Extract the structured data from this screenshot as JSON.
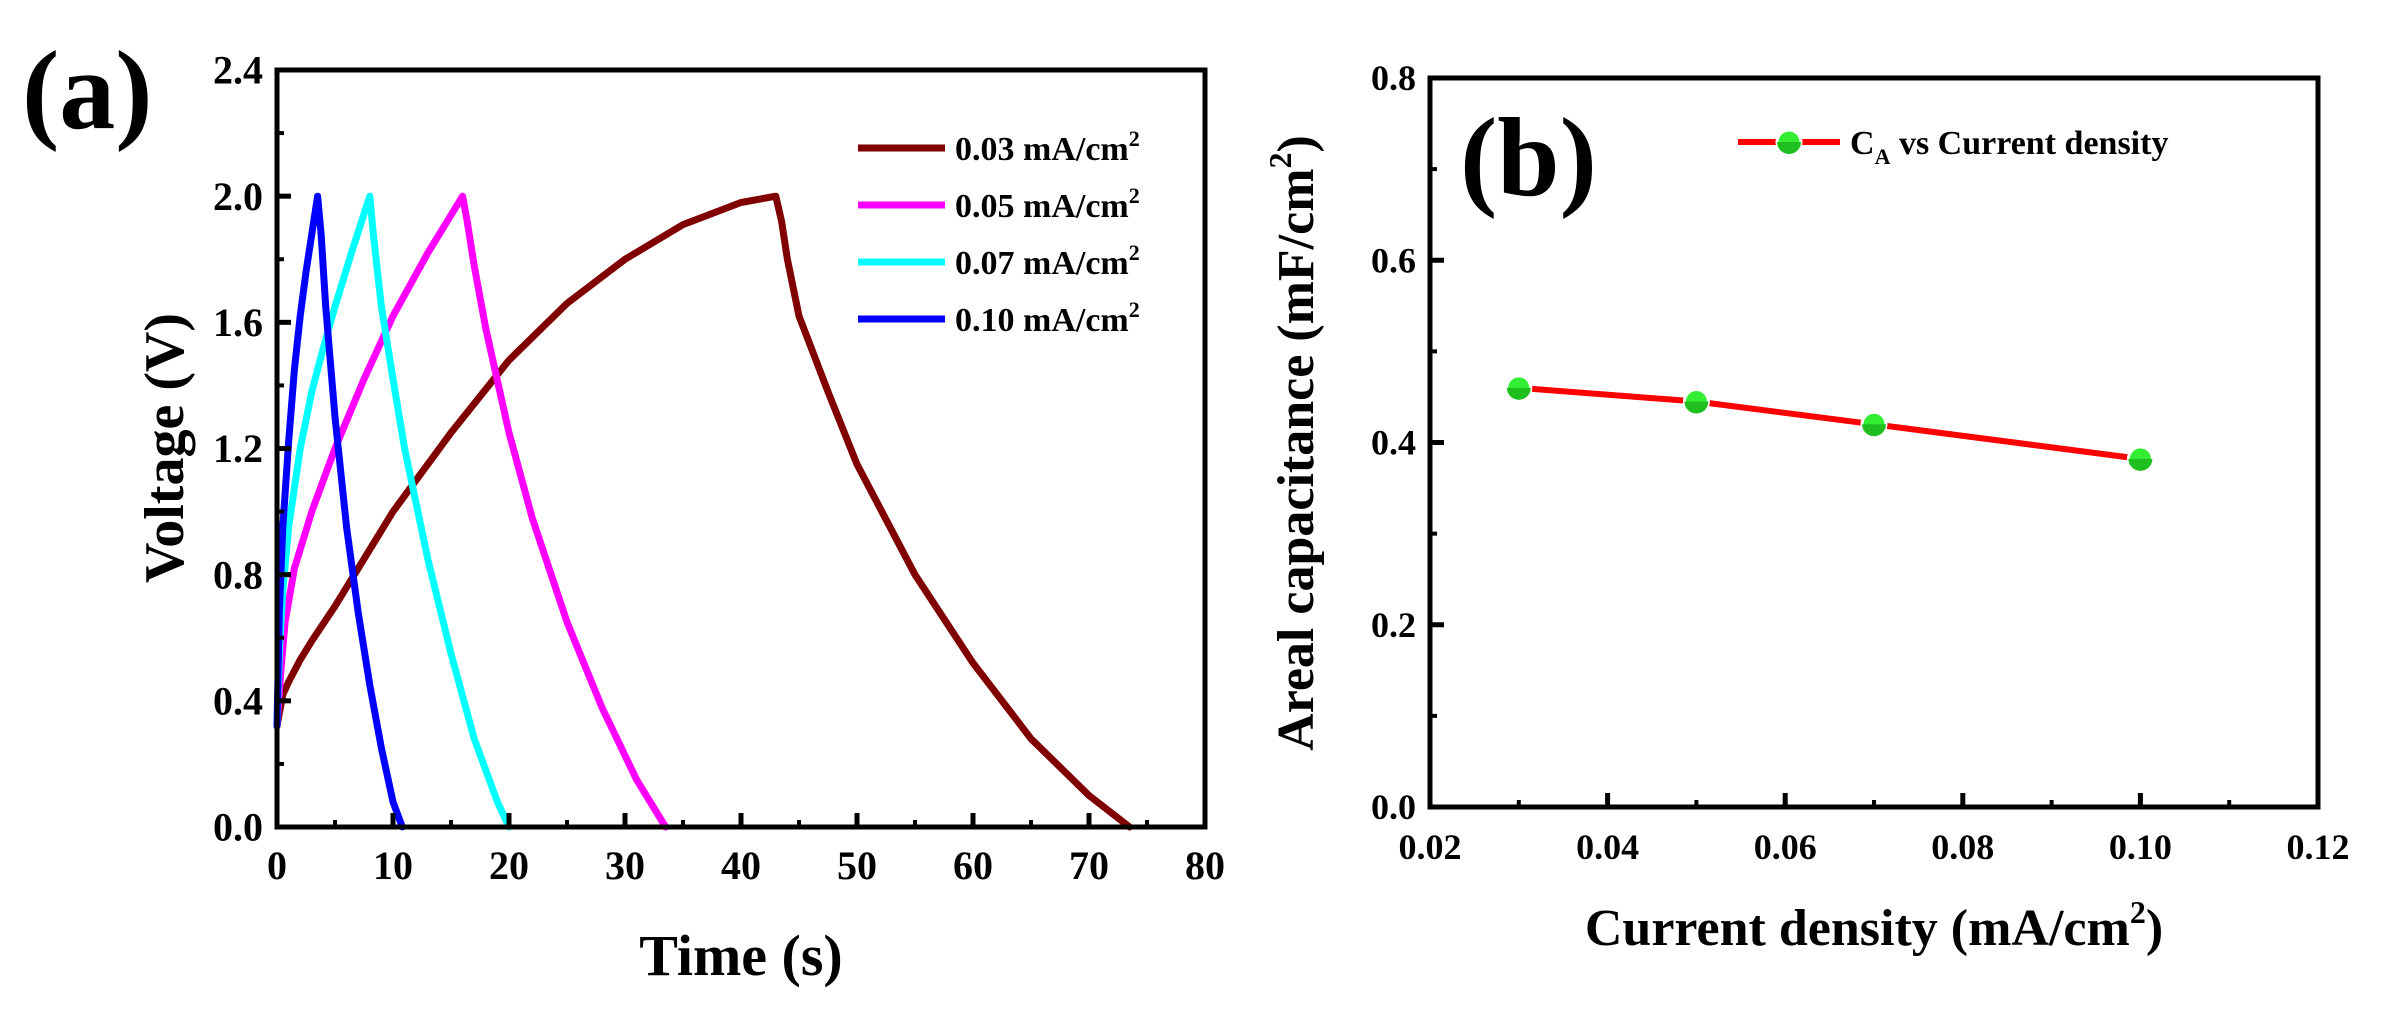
{
  "chart_data": [
    {
      "panel_label": "(a)",
      "type": "line",
      "title": "",
      "xlabel": "Time (s)",
      "ylabel": "Voltage (V)",
      "xlim": [
        0,
        80
      ],
      "ylim": [
        0,
        2.4
      ],
      "xticks": [
        0,
        10,
        20,
        30,
        40,
        50,
        60,
        70,
        80
      ],
      "yticks": [
        0.0,
        0.4,
        0.8,
        1.2,
        1.6,
        2.0,
        2.4
      ],
      "xtick_labels": [
        "0",
        "10",
        "20",
        "30",
        "40",
        "50",
        "60",
        "70",
        "80"
      ],
      "ytick_labels": [
        "0.0",
        "0.4",
        "0.8",
        "1.2",
        "1.6",
        "2.0",
        "2.4"
      ],
      "grid": false,
      "legend_position": "top-right",
      "series": [
        {
          "name": "0.03 mA/cm",
          "sup": "2",
          "color": "#800000",
          "x": [
            0,
            0.5,
            1,
            2,
            3,
            5,
            7.5,
            10,
            15,
            20,
            25,
            30,
            35,
            40,
            43,
            43.5,
            44,
            45,
            47.5,
            50,
            55,
            60,
            65,
            70,
            73.5
          ],
          "y": [
            0.32,
            0.42,
            0.46,
            0.53,
            0.59,
            0.7,
            0.85,
            1.0,
            1.25,
            1.48,
            1.66,
            1.8,
            1.91,
            1.98,
            2.0,
            1.92,
            1.8,
            1.62,
            1.38,
            1.15,
            0.8,
            0.52,
            0.28,
            0.1,
            0.0
          ]
        },
        {
          "name": "0.05 mA/cm",
          "sup": "2",
          "color": "#ff00ff",
          "x": [
            0,
            0.3,
            0.7,
            1.5,
            3,
            5,
            7.5,
            10,
            13,
            16,
            16.4,
            17,
            18,
            20,
            22,
            25,
            28,
            31,
            33.5
          ],
          "y": [
            0.32,
            0.48,
            0.65,
            0.82,
            1.0,
            1.2,
            1.42,
            1.62,
            1.82,
            2.0,
            1.92,
            1.78,
            1.58,
            1.25,
            0.98,
            0.65,
            0.38,
            0.15,
            0.0
          ]
        },
        {
          "name": "0.07 mA/cm",
          "sup": "2",
          "color": "#00ffff",
          "x": [
            0,
            0.2,
            0.5,
            1,
            2,
            3,
            4,
            5,
            6.5,
            8,
            8.3,
            9,
            10,
            11,
            13,
            15,
            17,
            19,
            20
          ],
          "y": [
            0.32,
            0.55,
            0.75,
            0.95,
            1.2,
            1.38,
            1.52,
            1.65,
            1.83,
            2.0,
            1.88,
            1.65,
            1.42,
            1.2,
            0.85,
            0.55,
            0.28,
            0.08,
            0.0
          ]
        },
        {
          "name": "0.10 mA/cm",
          "sup": "2",
          "color": "#0000ff",
          "x": [
            0,
            0.2,
            0.5,
            1,
            1.5,
            2,
            2.5,
            3,
            3.5,
            3.8,
            4.2,
            5,
            6,
            7,
            8,
            9,
            10,
            10.8
          ],
          "y": [
            0.32,
            0.68,
            0.95,
            1.22,
            1.45,
            1.62,
            1.76,
            1.88,
            2.0,
            1.88,
            1.65,
            1.3,
            0.95,
            0.68,
            0.45,
            0.25,
            0.08,
            0.0
          ]
        }
      ]
    },
    {
      "panel_label": "(b)",
      "type": "line",
      "title": "",
      "xlabel": "Current density (mA/cm",
      "xlabel_sup": "2",
      "xlabel_end": ")",
      "ylabel": "Areal capacitance (mF/cm",
      "ylabel_sup": "2",
      "ylabel_end": ")",
      "xlim": [
        0.02,
        0.12
      ],
      "ylim": [
        0.0,
        0.8
      ],
      "xticks": [
        0.02,
        0.04,
        0.06,
        0.08,
        0.1,
        0.12
      ],
      "yticks": [
        0.0,
        0.2,
        0.4,
        0.6,
        0.8
      ],
      "xtick_labels": [
        "0.02",
        "0.04",
        "0.06",
        "0.08",
        "0.10",
        "0.12"
      ],
      "ytick_labels": [
        "0.0",
        "0.2",
        "0.4",
        "0.6",
        "0.8"
      ],
      "grid": false,
      "legend_position": "top-right",
      "series": [
        {
          "name": "C",
          "sub": "A",
          "name_end": " vs Current density",
          "line_color": "#ff0000",
          "marker_color": "#33ee33",
          "x": [
            0.03,
            0.05,
            0.07,
            0.1
          ],
          "y": [
            0.46,
            0.445,
            0.42,
            0.382
          ]
        }
      ]
    }
  ]
}
